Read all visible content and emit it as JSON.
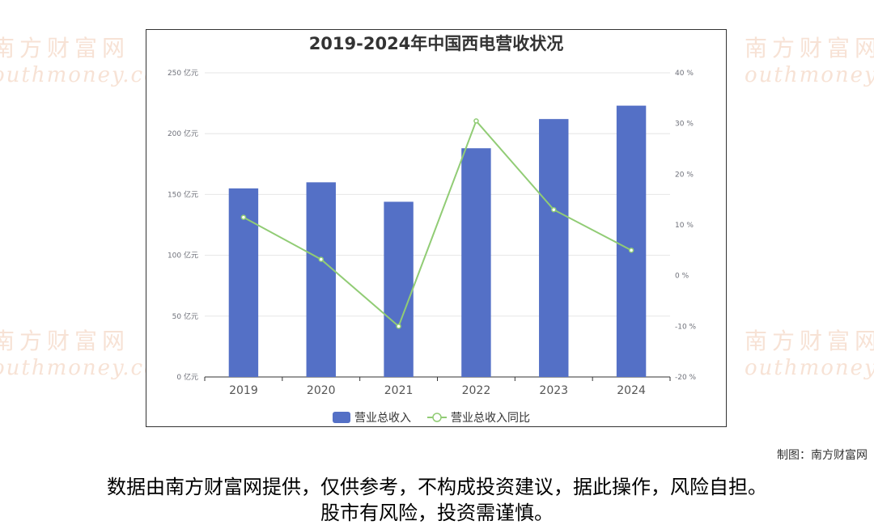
{
  "watermark": {
    "cn": "南方财富网",
    "en": "outhmoney.com"
  },
  "credit": "制图：南方财富网",
  "disclaimer": {
    "line1": "数据由南方财富网提供，仅供参考，不构成投资建议，据此操作，风险自担。",
    "line2": "股市有风险，投资需谨慎。"
  },
  "chart_data": {
    "type": "bar",
    "title": "2019-2024年中国西电营收状况",
    "categories": [
      "2019",
      "2020",
      "2021",
      "2022",
      "2023",
      "2024"
    ],
    "series": [
      {
        "name": "营业总收入",
        "type": "bar",
        "axis": "left",
        "color": "#5470c6",
        "values": [
          155,
          160,
          144,
          188,
          212,
          223
        ]
      },
      {
        "name": "营业总收入同比",
        "type": "line",
        "axis": "right",
        "color": "#91cc75",
        "values": [
          11.5,
          3.2,
          -10.0,
          30.5,
          13.0,
          5.0
        ]
      }
    ],
    "y_left": {
      "min": 0,
      "max": 250,
      "ticks": [
        0,
        50,
        100,
        150,
        200,
        250
      ],
      "unit": "亿元"
    },
    "y_right": {
      "min": -20,
      "max": 40,
      "ticks": [
        -20,
        -10,
        0,
        10,
        20,
        30,
        40
      ],
      "unit": "%"
    },
    "grid": true,
    "legend_position": "bottom-center"
  }
}
